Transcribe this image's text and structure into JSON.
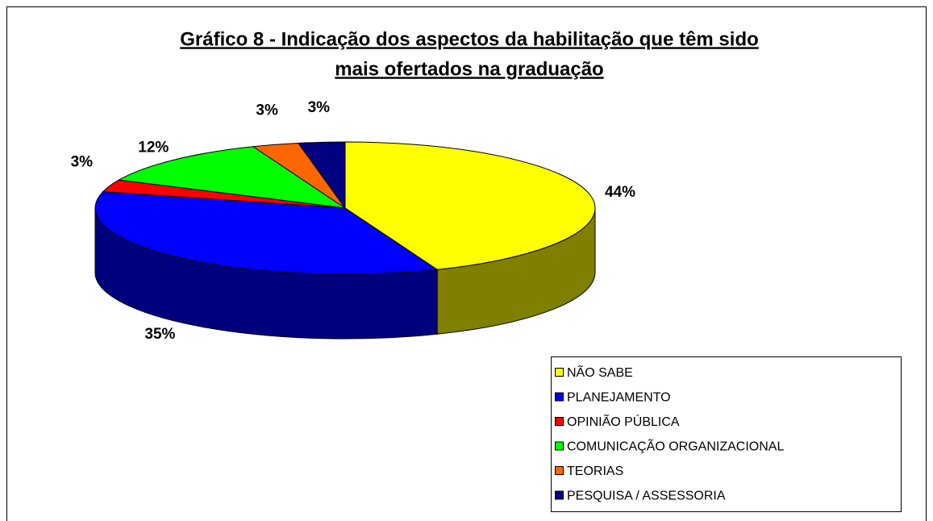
{
  "chart_data": {
    "type": "pie3d",
    "title": "Gráfico 8 - Indicação dos aspectos da habilitação que têm sido",
    "subtitle": "mais ofertados na graduação",
    "categories": [
      "NÃO SABE",
      "PLANEJAMENTO",
      "OPINIÃO PÚBLICA",
      "COMUNICAÇÃO ORGANIZACIONAL",
      "TEORIAS",
      "PESQUISA / ASSESSORIA"
    ],
    "values": [
      44,
      35,
      3,
      12,
      3,
      3
    ],
    "value_labels": [
      "44%",
      "35%",
      "3%",
      "12%",
      "3%",
      "3%"
    ],
    "colors": [
      "#ffff00",
      "#0000ff",
      "#ff0000",
      "#00ff00",
      "#ff6600",
      "#000080"
    ],
    "legend": "bottom-right"
  }
}
